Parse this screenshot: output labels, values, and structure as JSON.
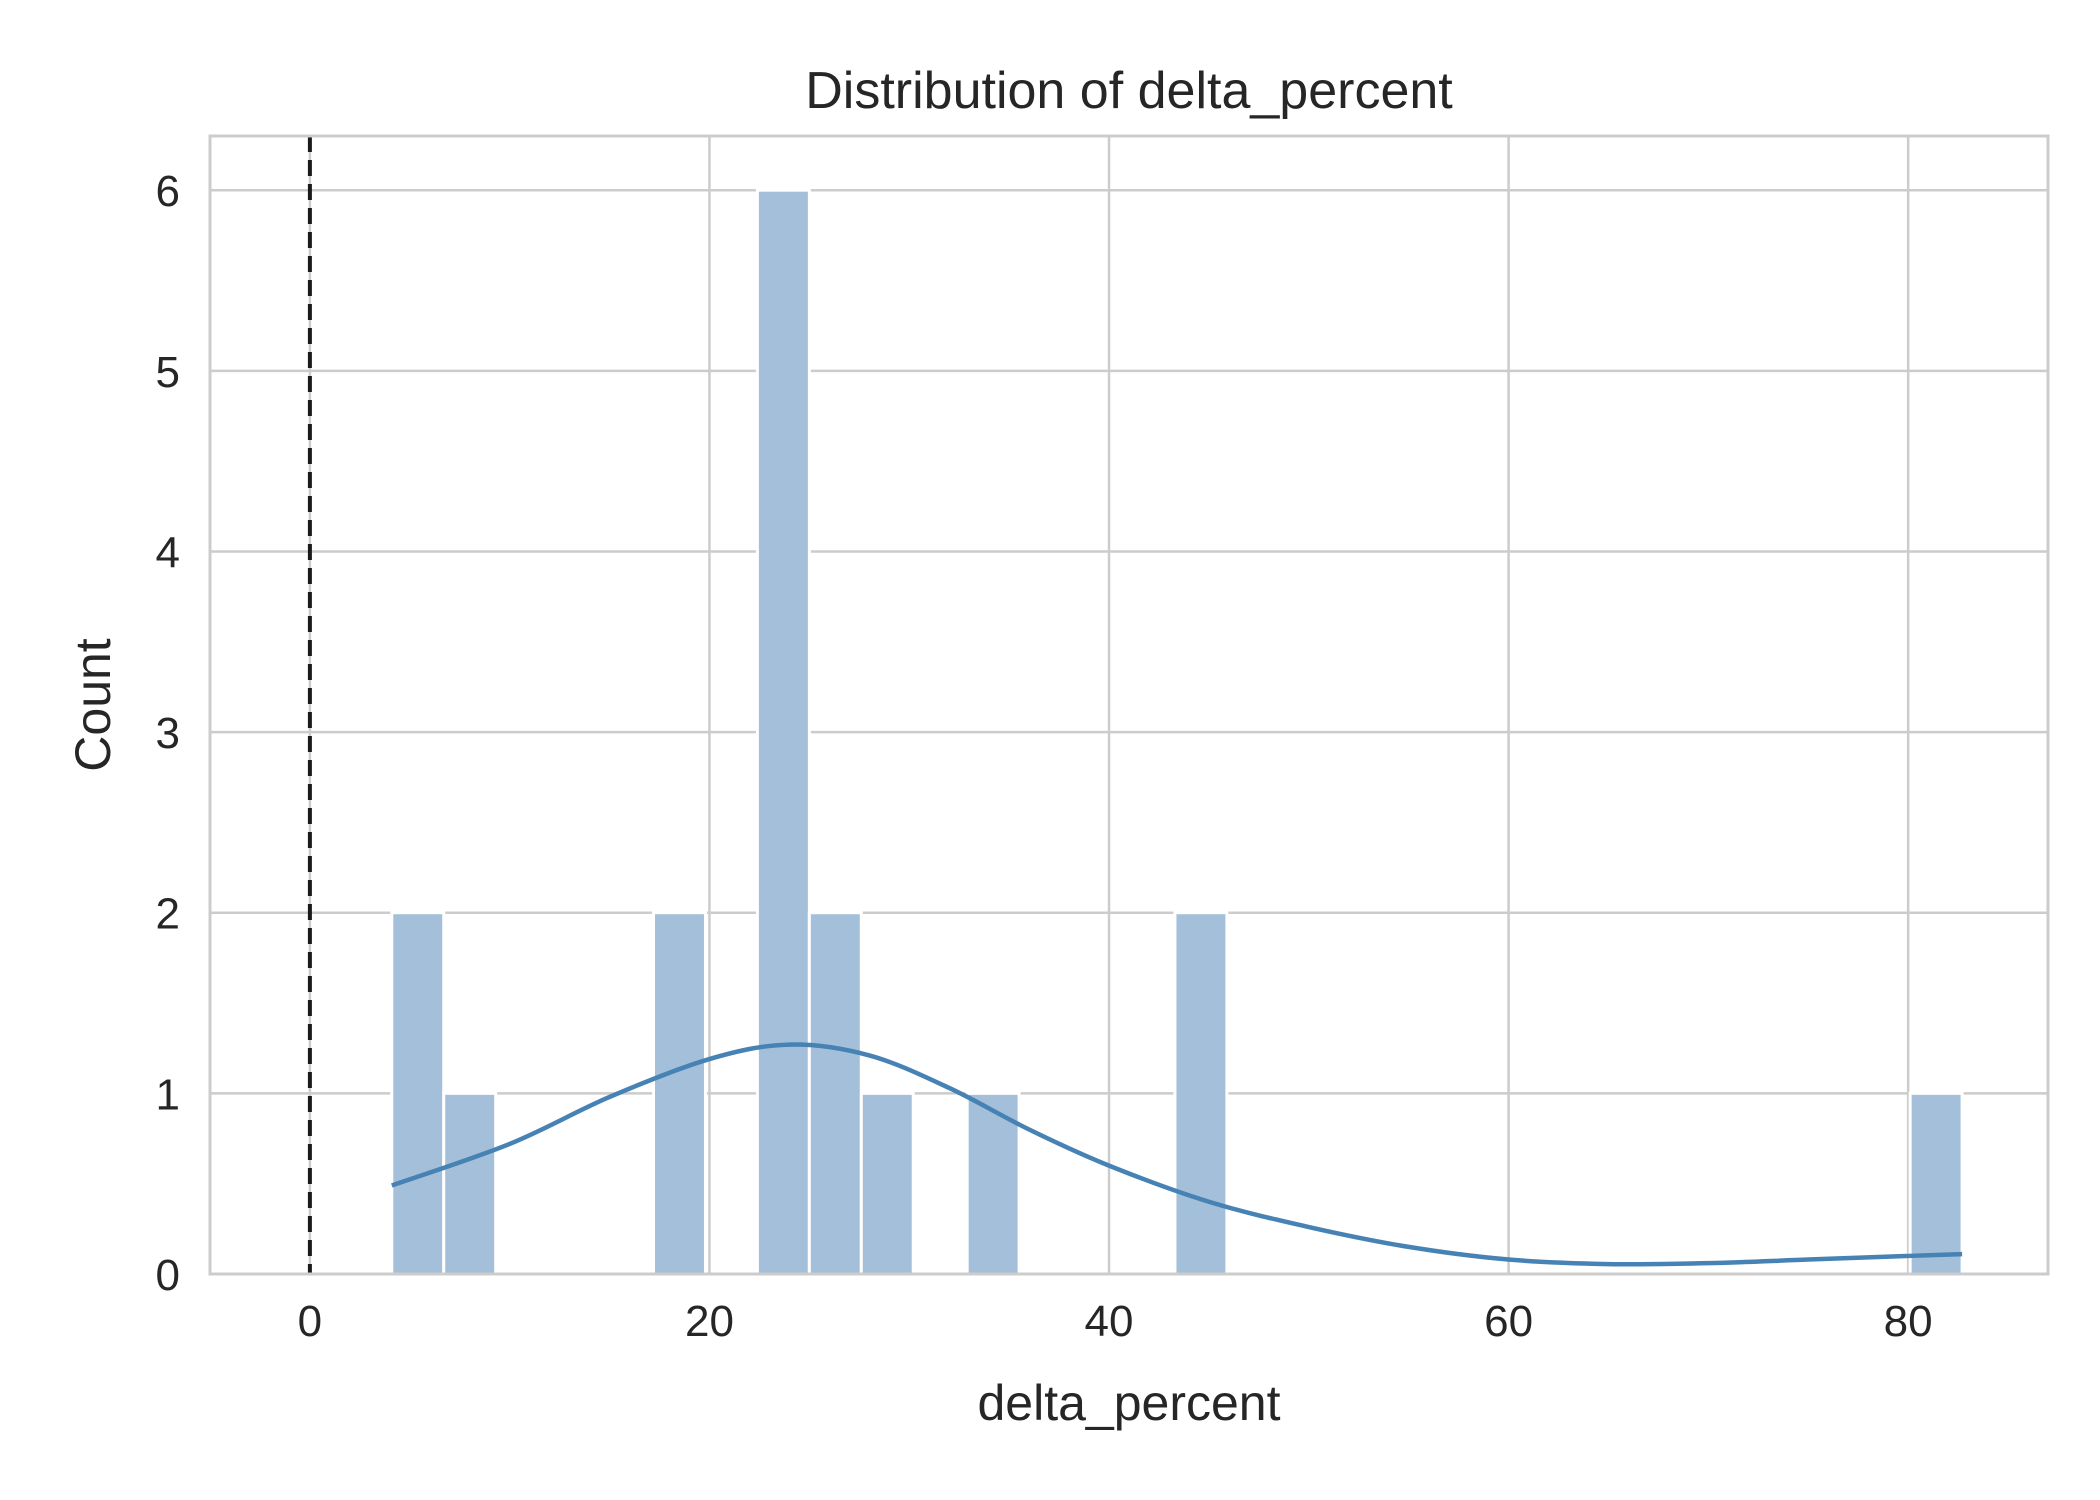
{
  "chart_data": {
    "type": "bar",
    "subtype": "histogram",
    "title": "Distribution of delta_percent",
    "xlabel": "delta_percent",
    "ylabel": "Count",
    "xlim": [
      -5,
      87
    ],
    "ylim": [
      0,
      6.3
    ],
    "xticks": [
      0,
      20,
      40,
      60,
      80
    ],
    "yticks": [
      0,
      1,
      2,
      3,
      4,
      5,
      6
    ],
    "grid": true,
    "bin_width": 2.6,
    "bins": [
      {
        "start": 4.1,
        "end": 6.7,
        "count": 2
      },
      {
        "start": 6.7,
        "end": 9.3,
        "count": 1
      },
      {
        "start": 17.2,
        "end": 19.8,
        "count": 2
      },
      {
        "start": 22.4,
        "end": 25.0,
        "count": 6
      },
      {
        "start": 25.0,
        "end": 27.6,
        "count": 2
      },
      {
        "start": 27.6,
        "end": 30.2,
        "count": 1
      },
      {
        "start": 32.9,
        "end": 35.5,
        "count": 1
      },
      {
        "start": 43.3,
        "end": 45.9,
        "count": 2
      },
      {
        "start": 80.1,
        "end": 82.7,
        "count": 1
      }
    ],
    "kde": {
      "x": [
        4.1,
        10,
        15,
        20,
        24,
        28,
        32,
        36,
        40,
        45,
        50,
        55,
        60,
        65,
        70,
        75,
        80,
        82.7
      ],
      "y": [
        0.49,
        0.72,
        0.98,
        1.19,
        1.27,
        1.21,
        1.03,
        0.8,
        0.6,
        0.4,
        0.26,
        0.15,
        0.08,
        0.055,
        0.06,
        0.08,
        0.1,
        0.11
      ]
    },
    "reference_line": {
      "x": 0,
      "style": "dashed"
    },
    "colors": {
      "bar_fill": "#a3bfd9",
      "kde_line": "#4682b4",
      "reference_line": "#1a1a1a",
      "grid": "#cccccc",
      "text": "#262626"
    }
  }
}
